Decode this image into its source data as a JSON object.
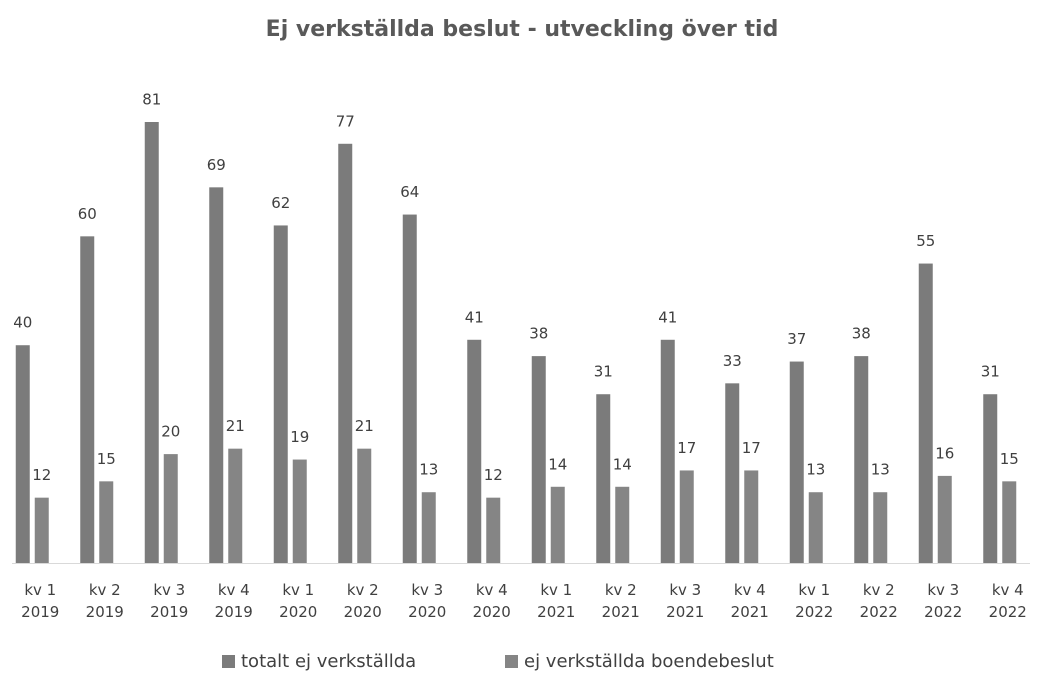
{
  "chart_data": {
    "type": "bar",
    "title": "Ej verkställda beslut - utveckling över tid",
    "categories": [
      "kv 1 2019",
      "kv 2 2019",
      "kv 3 2019",
      "kv 4 2019",
      "kv 1 2020",
      "kv 2 2020",
      "kv 3 2020",
      "kv 4 2020",
      "kv 1 2021",
      "kv 2 2021",
      "kv 3 2021",
      "kv 4 2021",
      "kv 1 2022",
      "kv 2 2022",
      "kv 3 2022",
      "kv 4 2022"
    ],
    "series": [
      {
        "name": "totalt ej verkställda",
        "color": "#7b7b7b",
        "values": [
          40,
          60,
          81,
          69,
          62,
          77,
          64,
          41,
          38,
          31,
          41,
          33,
          37,
          38,
          55,
          31
        ]
      },
      {
        "name": "ej verkställda boendebeslut",
        "color": "#858585",
        "values": [
          12,
          15,
          20,
          21,
          19,
          21,
          13,
          12,
          14,
          14,
          17,
          17,
          13,
          13,
          16,
          15
        ]
      }
    ],
    "legend": "bottom"
  }
}
